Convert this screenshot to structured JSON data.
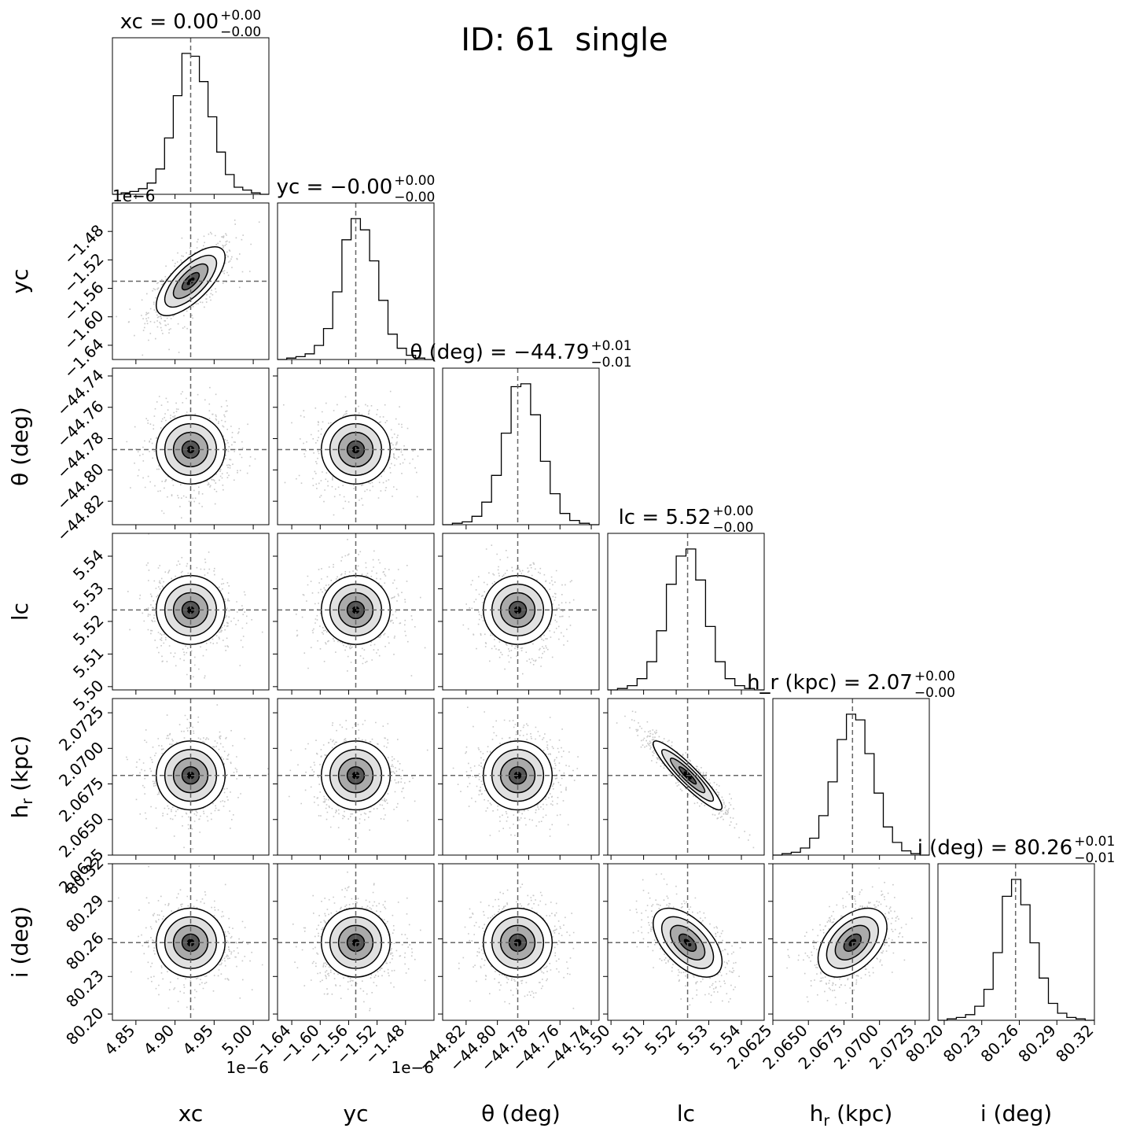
{
  "figure": {
    "title": "ID: 61  single"
  },
  "params": [
    {
      "label": "xc",
      "title_name": "xc",
      "title_value": "0.00",
      "title_plus": "+0.00",
      "title_minus": "−0.00",
      "truth": 4.92,
      "ticks": [
        "4.85",
        "4.90",
        "4.95",
        "5.00"
      ],
      "tick_values": [
        4.85,
        4.9,
        4.95,
        5.0
      ],
      "range": [
        4.82,
        5.02
      ],
      "offset_text": "1e−6",
      "hist": [
        0,
        1,
        2,
        4,
        8,
        18,
        40,
        70,
        100,
        98,
        80,
        55,
        30,
        14,
        5,
        3,
        1,
        0
      ]
    },
    {
      "label": "yc",
      "title_name": "yc",
      "title_value": "−0.00",
      "title_plus": "+0.00",
      "title_minus": "−0.00",
      "truth": -1.55,
      "ticks": [
        "−1.64",
        "−1.60",
        "−1.56",
        "−1.52",
        "−1.48"
      ],
      "tick_values": [
        -1.64,
        -1.6,
        -1.56,
        -1.52,
        -1.48
      ],
      "range": [
        -1.66,
        -1.44
      ],
      "offset_text": "1e−6",
      "hist": [
        0,
        1,
        2,
        4,
        10,
        22,
        48,
        85,
        100,
        92,
        70,
        42,
        18,
        8,
        3,
        1,
        0
      ]
    },
    {
      "label": "θ (deg)",
      "title_name": "θ (deg)",
      "title_value": "−44.79",
      "title_plus": "+0.01",
      "title_minus": "−0.01",
      "truth": -44.787,
      "ticks": [
        "−44.82",
        "−44.80",
        "−44.78",
        "−44.76",
        "−44.74"
      ],
      "tick_values": [
        -44.82,
        -44.8,
        -44.78,
        -44.76,
        -44.74
      ],
      "range": [
        -44.835,
        -44.735
      ],
      "offset_text": "",
      "hist": [
        0,
        1,
        2,
        6,
        16,
        35,
        65,
        98,
        100,
        78,
        45,
        22,
        8,
        3,
        1,
        0
      ]
    },
    {
      "label": "lc",
      "title_name": "lc",
      "title_value": "5.52",
      "title_plus": "+0.00",
      "title_minus": "−0.00",
      "truth": 5.5235,
      "ticks": [
        "5.50",
        "5.51",
        "5.52",
        "5.53",
        "5.54"
      ],
      "tick_values": [
        5.5,
        5.51,
        5.52,
        5.53,
        5.54
      ],
      "range": [
        5.499,
        5.547
      ],
      "offset_text": "",
      "hist": [
        0,
        1,
        3,
        8,
        20,
        42,
        75,
        95,
        100,
        78,
        45,
        20,
        8,
        3,
        1,
        0
      ]
    },
    {
      "label": "h_r (kpc)",
      "label_base": "h",
      "label_sub": "r",
      "label_rest": " (kpc)",
      "title_name": "h_r (kpc)",
      "title_value": "2.07",
      "title_plus": "+0.00",
      "title_minus": "−0.00",
      "truth": 2.0681,
      "ticks": [
        "2.0625",
        "2.0650",
        "2.0675",
        "2.0700",
        "2.0725"
      ],
      "tick_values": [
        2.0625,
        2.065,
        2.0675,
        2.07,
        2.0725
      ],
      "range": [
        2.0625,
        2.0735
      ],
      "offset_text": "",
      "hist": [
        0,
        1,
        2,
        5,
        12,
        28,
        52,
        82,
        100,
        96,
        72,
        44,
        20,
        9,
        3,
        1,
        0
      ]
    },
    {
      "label": "i (deg)",
      "title_name": "i (deg)",
      "title_value": "80.26",
      "title_plus": "+0.01",
      "title_minus": "−0.01",
      "truth": 80.257,
      "ticks": [
        "80.20",
        "80.23",
        "80.26",
        "80.29",
        "80.32"
      ],
      "tick_values": [
        80.2,
        80.23,
        80.26,
        80.29,
        80.32
      ],
      "range": [
        80.195,
        80.32
      ],
      "offset_text": "",
      "hist": [
        0,
        1,
        2,
        4,
        10,
        22,
        48,
        88,
        100,
        82,
        55,
        30,
        12,
        5,
        2,
        1,
        0
      ]
    }
  ],
  "correlations": {
    "1_0": 0.7,
    "4_3": -0.92,
    "5_3": -0.55,
    "5_4": 0.45
  },
  "chart_data": {
    "type": "scatter",
    "title": "ID: 61  single",
    "variables": [
      "xc",
      "yc",
      "θ (deg)",
      "lc",
      "h_r (kpc)",
      "i (deg)"
    ],
    "medians": {
      "xc": 4.92e-06,
      "yc": -1.55e-06,
      "theta_deg": -44.787,
      "lc": 5.5235,
      "h_r_kpc": 2.0681,
      "i_deg": 80.257
    },
    "summary_titles": [
      "xc = 0.00 +0.00 −0.00",
      "yc = −0.00 +0.00 −0.00",
      "θ (deg) = −44.79 +0.01 −0.01",
      "lc = 5.52 +0.00 −0.00",
      "h_r (kpc) = 2.07 +0.00 −0.00",
      "i (deg) = 80.26 +0.01 −0.01"
    ],
    "layout": "corner plot (6x6 lower triangle), 1D histograms on diagonal, 2D density contours off-diagonal, dashed lines at medians"
  }
}
